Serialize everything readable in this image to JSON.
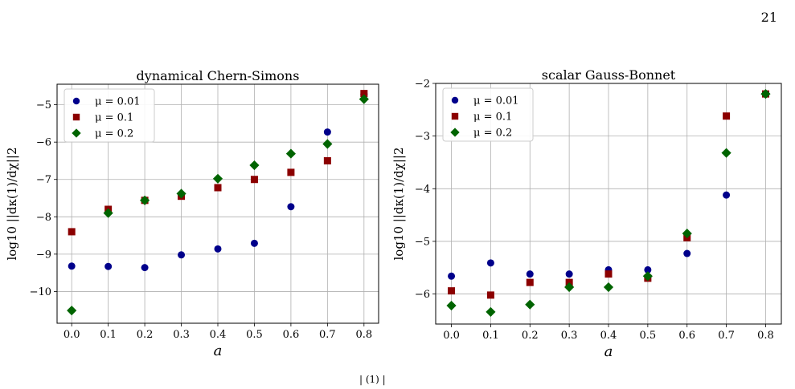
{
  "page": {
    "number": "21",
    "footer_fragment": "| (1)    |"
  },
  "chart_data": [
    {
      "type": "scatter",
      "title": "dynamical Chern-Simons",
      "xlabel": "a",
      "ylabel": "log10 ||dκ(1)/dχ||2",
      "xlim": [
        -0.04,
        0.84
      ],
      "ylim": [
        -10.85,
        -4.45
      ],
      "xticks": [
        0.0,
        0.1,
        0.2,
        0.3,
        0.4,
        0.5,
        0.6,
        0.7,
        0.8
      ],
      "xtick_labels": [
        "0.0",
        "0.1",
        "0.2",
        "0.3",
        "0.4",
        "0.5",
        "0.6",
        "0.7",
        "0.8"
      ],
      "yticks": [
        -10,
        -9,
        -8,
        -7,
        -6,
        -5
      ],
      "ytick_labels": [
        "−10",
        "−9",
        "−8",
        "−7",
        "−6",
        "−5"
      ],
      "grid": true,
      "legend_position": "top-left",
      "x": [
        0.0,
        0.1,
        0.2,
        0.3,
        0.4,
        0.5,
        0.6,
        0.7,
        0.8
      ],
      "series": [
        {
          "name": "μ = 0.01",
          "marker": "circle",
          "color": "#00008b",
          "values": [
            -9.32,
            -9.33,
            -9.36,
            -9.02,
            -8.86,
            -8.71,
            -7.73,
            -5.73,
            -4.72
          ]
        },
        {
          "name": "μ = 0.1",
          "marker": "square",
          "color": "#8b0000",
          "values": [
            -8.4,
            -7.8,
            -7.56,
            -7.45,
            -7.22,
            -7.0,
            -6.81,
            -6.5,
            -4.7
          ]
        },
        {
          "name": "μ = 0.2",
          "marker": "diamond",
          "color": "#006400",
          "values": [
            -10.51,
            -7.9,
            -7.56,
            -7.38,
            -6.98,
            -6.62,
            -6.31,
            -6.05,
            -4.85
          ]
        }
      ]
    },
    {
      "type": "scatter",
      "title": "scalar Gauss-Bonnet",
      "xlabel": "a",
      "ylabel": "log10 ||dκ(1)/dχ||2",
      "xlim": [
        -0.04,
        0.84
      ],
      "ylim": [
        -6.57,
        -2.0
      ],
      "xticks": [
        0.0,
        0.1,
        0.2,
        0.3,
        0.4,
        0.5,
        0.6,
        0.7,
        0.8
      ],
      "xtick_labels": [
        "0.0",
        "0.1",
        "0.2",
        "0.3",
        "0.4",
        "0.5",
        "0.6",
        "0.7",
        "0.8"
      ],
      "yticks": [
        -6,
        -5,
        -4,
        -3,
        -2
      ],
      "ytick_labels": [
        "−6",
        "−5",
        "−4",
        "−3",
        "−2"
      ],
      "grid": true,
      "legend_position": "top-left",
      "x": [
        0.0,
        0.1,
        0.2,
        0.3,
        0.4,
        0.5,
        0.6,
        0.7,
        0.8
      ],
      "series": [
        {
          "name": "μ = 0.01",
          "marker": "circle",
          "color": "#00008b",
          "values": [
            -5.66,
            -5.41,
            -5.62,
            -5.62,
            -5.54,
            -5.54,
            -5.23,
            -4.12,
            -2.2
          ]
        },
        {
          "name": "μ = 0.1",
          "marker": "square",
          "color": "#8b0000",
          "values": [
            -5.94,
            -6.02,
            -5.78,
            -5.78,
            -5.62,
            -5.7,
            -4.93,
            -2.62,
            -2.2
          ]
        },
        {
          "name": "μ = 0.2",
          "marker": "diamond",
          "color": "#006400",
          "values": [
            -6.22,
            -6.34,
            -6.2,
            -5.87,
            -5.87,
            -5.66,
            -4.85,
            -3.32,
            -2.2
          ]
        }
      ]
    }
  ]
}
